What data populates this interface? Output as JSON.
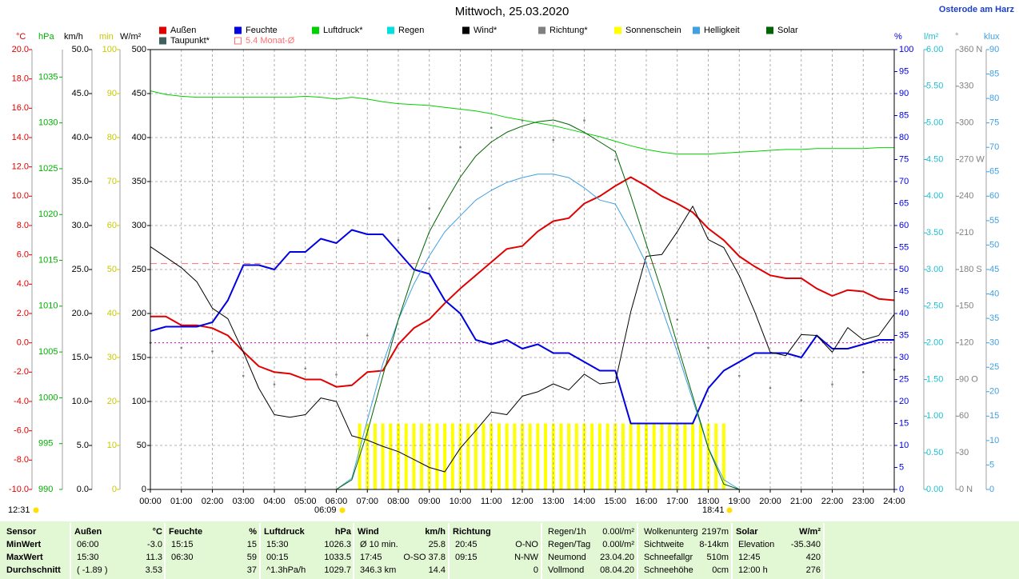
{
  "chart_data": {
    "type": "line",
    "title": "Mittwoch, 25.03.2020",
    "location": "Osterode am Harz",
    "grid": true,
    "grid_axis": 4,
    "xlim": [
      0,
      24
    ],
    "xticks": [
      {
        "value": 0,
        "label": "00:00"
      },
      {
        "value": 1,
        "label": "01:00"
      },
      {
        "value": 2,
        "label": "02:00"
      },
      {
        "value": 3,
        "label": "03:00"
      },
      {
        "value": 4,
        "label": "04:00"
      },
      {
        "value": 5,
        "label": "05:00"
      },
      {
        "value": 6,
        "label": "06:00"
      },
      {
        "value": 7,
        "label": "07:00"
      },
      {
        "value": 8,
        "label": "08:00"
      },
      {
        "value": 9,
        "label": "09:00"
      },
      {
        "value": 10,
        "label": "10:00"
      },
      {
        "value": 11,
        "label": "11:00"
      },
      {
        "value": 12,
        "label": "12:00"
      },
      {
        "value": 13,
        "label": "13:00"
      },
      {
        "value": 14,
        "label": "14:00"
      },
      {
        "value": 15,
        "label": "15:00"
      },
      {
        "value": 16,
        "label": "16:00"
      },
      {
        "value": 17,
        "label": "17:00"
      },
      {
        "value": 18,
        "label": "18:00"
      },
      {
        "value": 19,
        "label": "19:00"
      },
      {
        "value": 20,
        "label": "20:00"
      },
      {
        "value": 21,
        "label": "21:00"
      },
      {
        "value": 22,
        "label": "22:00"
      },
      {
        "value": 23,
        "label": "23:00"
      },
      {
        "value": 24,
        "label": "24:00"
      }
    ],
    "axes": [
      {
        "unit": "°C",
        "color": "#e00000",
        "ylim": [
          -10,
          20
        ],
        "yticks": [
          {
            "value": -10,
            "label": "-10.0"
          },
          {
            "value": -8,
            "label": "-8.0"
          },
          {
            "value": -6,
            "label": "-6.0"
          },
          {
            "value": -4,
            "label": "-4.0"
          },
          {
            "value": -2,
            "label": "-2.0"
          },
          {
            "value": 0,
            "label": "0.0"
          },
          {
            "value": 2,
            "label": "2.0"
          },
          {
            "value": 4,
            "label": "4.0"
          },
          {
            "value": 6,
            "label": "6.0"
          },
          {
            "value": 8,
            "label": "8.0"
          },
          {
            "value": 10,
            "label": "10.0"
          },
          {
            "value": 12,
            "label": "12.0"
          },
          {
            "value": 14,
            "label": "14.0"
          },
          {
            "value": 16,
            "label": "16.0"
          },
          {
            "value": 18,
            "label": "18.0"
          },
          {
            "value": 20,
            "label": "20.0"
          }
        ]
      },
      {
        "unit": "hPa",
        "color": "#00b000",
        "ylim": [
          990,
          1038
        ],
        "yticks": [
          990,
          995,
          1000,
          1005,
          1010,
          1015,
          1020,
          1025,
          1030,
          1035
        ]
      },
      {
        "unit": "km/h",
        "color": "#000000",
        "ylim": [
          0,
          50
        ],
        "yticks": [
          {
            "value": 0,
            "label": "0.0"
          },
          {
            "value": 5,
            "label": "5.0"
          },
          {
            "value": 10,
            "label": "10.0"
          },
          {
            "value": 15,
            "label": "15.0"
          },
          {
            "value": 20,
            "label": "20.0"
          },
          {
            "value": 25,
            "label": "25.0"
          },
          {
            "value": 30,
            "label": "30.0"
          },
          {
            "value": 35,
            "label": "35.0"
          },
          {
            "value": 40,
            "label": "40.0"
          },
          {
            "value": 45,
            "label": "45.0"
          },
          {
            "value": 50,
            "label": "50.0"
          }
        ]
      },
      {
        "unit": "min",
        "color": "#c8c800",
        "ylim": [
          0,
          100
        ],
        "yticks": [
          0,
          10,
          20,
          30,
          40,
          50,
          60,
          70,
          80,
          90,
          100
        ]
      },
      {
        "unit": "W/m²",
        "color": "#000000",
        "ylim": [
          0,
          500
        ],
        "yticks": [
          0,
          50,
          100,
          150,
          200,
          250,
          300,
          350,
          400,
          450,
          500
        ]
      },
      {
        "unit": "%",
        "color": "#0000e0",
        "ylim": [
          0,
          100
        ],
        "yticks": [
          0,
          5,
          10,
          15,
          20,
          25,
          30,
          35,
          40,
          45,
          50,
          55,
          60,
          65,
          70,
          75,
          80,
          85,
          90,
          95,
          100
        ]
      },
      {
        "unit": "l/m²",
        "color": "#20c0d0",
        "ylim": [
          0,
          6
        ],
        "yticks": [
          {
            "value": 0,
            "label": "0.00"
          },
          {
            "value": 0.5,
            "label": "0.50"
          },
          {
            "value": 1,
            "label": "1.00"
          },
          {
            "value": 1.5,
            "label": "1.50"
          },
          {
            "value": 2,
            "label": "2.00"
          },
          {
            "value": 2.5,
            "label": "2.50"
          },
          {
            "value": 3,
            "label": "3.00"
          },
          {
            "value": 3.5,
            "label": "3.50"
          },
          {
            "value": 4,
            "label": "4.00"
          },
          {
            "value": 4.5,
            "label": "4.50"
          },
          {
            "value": 5,
            "label": "5.00"
          },
          {
            "value": 5.5,
            "label": "5.50"
          },
          {
            "value": 6,
            "label": "6.00"
          }
        ]
      },
      {
        "unit": "°",
        "color": "#808080",
        "ylim": [
          0,
          360
        ],
        "yticks": [
          {
            "value": 0,
            "label": "0 N"
          },
          30,
          60,
          {
            "value": 90,
            "label": "90 O"
          },
          120,
          150,
          {
            "value": 180,
            "label": "180 S"
          },
          210,
          240,
          {
            "value": 270,
            "label": "270 W"
          },
          300,
          330,
          {
            "value": 360,
            "label": "360 N"
          }
        ]
      },
      {
        "unit": "klux",
        "color": "#40a0e0",
        "ylim": [
          0,
          90
        ],
        "yticks": [
          0,
          5,
          10,
          15,
          20,
          25,
          30,
          35,
          40,
          45,
          50,
          55,
          60,
          65,
          70,
          75,
          80,
          85,
          90
        ]
      }
    ],
    "x": [
      0,
      0.5,
      1,
      1.5,
      2,
      2.5,
      3,
      3.5,
      4,
      4.5,
      5,
      5.5,
      6,
      6.5,
      7,
      7.5,
      8,
      8.5,
      9,
      9.5,
      10,
      10.5,
      11,
      11.5,
      12,
      12.5,
      13,
      13.5,
      14,
      14.5,
      15,
      15.5,
      16,
      16.5,
      17,
      17.5,
      18,
      18.5,
      19,
      19.5,
      20,
      20.5,
      21,
      21.5,
      22,
      22.5,
      23,
      23.5,
      24
    ],
    "series": [
      {
        "name": "Außen",
        "color": "#e00000",
        "axis": 0,
        "style": "line",
        "width": 2,
        "values": [
          1.8,
          1.8,
          1.2,
          1.2,
          1.0,
          0.5,
          -0.6,
          -1.6,
          -2.0,
          -2.1,
          -2.5,
          -2.5,
          -3.0,
          -2.9,
          -2.0,
          -1.9,
          -0.1,
          1.0,
          1.6,
          2.7,
          3.7,
          4.6,
          5.5,
          6.4,
          6.6,
          7.6,
          8.3,
          8.5,
          9.5,
          10.0,
          10.7,
          11.3,
          10.7,
          10.0,
          9.5,
          8.9,
          7.8,
          7.0,
          5.9,
          5.2,
          4.6,
          4.4,
          4.4,
          3.7,
          3.2,
          3.6,
          3.5,
          3.0,
          2.9
        ]
      },
      {
        "name": "Feuchte",
        "color": "#0000e0",
        "axis": 5,
        "style": "line",
        "width": 2,
        "values": [
          36,
          37,
          37,
          37,
          38,
          43,
          51,
          51,
          50,
          54,
          54,
          57,
          56,
          59,
          58,
          58,
          54,
          50,
          49,
          43,
          40,
          34,
          33,
          34,
          32,
          33,
          31,
          31,
          29,
          27,
          27,
          15,
          15,
          15,
          15,
          15,
          23,
          27,
          29,
          31,
          31,
          31,
          30,
          35,
          32,
          32,
          33,
          34,
          34
        ]
      },
      {
        "name": "Luftdruck*",
        "color": "#00d000",
        "axis": 1,
        "style": "line",
        "width": 1,
        "values": [
          1033.5,
          1033.1,
          1032.9,
          1032.8,
          1032.8,
          1032.8,
          1032.8,
          1032.8,
          1032.8,
          1032.8,
          1032.9,
          1032.8,
          1032.6,
          1032.8,
          1032.6,
          1032.3,
          1032.1,
          1032.0,
          1031.9,
          1031.7,
          1031.5,
          1031.3,
          1031.0,
          1030.6,
          1030.3,
          1030.0,
          1029.7,
          1029.3,
          1028.9,
          1028.5,
          1028.0,
          1027.5,
          1027.1,
          1026.8,
          1026.6,
          1026.6,
          1026.6,
          1026.7,
          1026.8,
          1026.9,
          1027.0,
          1027.1,
          1027.1,
          1027.2,
          1027.2,
          1027.2,
          1027.2,
          1027.3,
          1027.3
        ]
      },
      {
        "name": "Regen",
        "color": "#00e0e0"
      },
      {
        "name": "Wind*",
        "color": "#000000",
        "axis": 2,
        "style": "line",
        "width": 1,
        "values": [
          27.6,
          26.4,
          25.2,
          23.6,
          20.6,
          19.4,
          15.6,
          11.5,
          8.5,
          8.2,
          8.5,
          10.4,
          10.0,
          6.1,
          5.6,
          4.9,
          4.3,
          3.4,
          2.5,
          2.0,
          4.7,
          6.7,
          8.8,
          8.5,
          10.6,
          11.1,
          12.0,
          11.3,
          13.1,
          12.0,
          12.2,
          20.2,
          26.5,
          26.7,
          29.3,
          32.2,
          28.4,
          27.5,
          24.3,
          20.2,
          15.6,
          15.2,
          17.6,
          17.5,
          15.6,
          18.4,
          17.0,
          17.5,
          19.9
        ]
      },
      {
        "name": "Richtung*",
        "color": "#808080",
        "axis": 7,
        "style": "dots",
        "x": [
          0,
          1,
          2,
          3,
          4,
          5,
          6,
          7,
          8,
          9,
          10,
          11,
          12,
          13,
          14,
          15,
          16,
          17,
          18,
          19,
          20,
          21,
          22,
          23,
          24
        ],
        "values": [
          120,
          116,
          113,
          93,
          86,
          99,
          94,
          126,
          204,
          230,
          280,
          296,
          302,
          286,
          302,
          270,
          185,
          139,
          116,
          93,
          83,
          73,
          86,
          96,
          98
        ]
      },
      {
        "name": "Sonnenschein",
        "color": "#ffff00",
        "axis": 3,
        "style": "bars",
        "x": [
          6.75,
          7,
          7.25,
          7.5,
          7.75,
          8,
          8.25,
          8.5,
          8.75,
          9,
          9.25,
          9.5,
          9.75,
          10,
          10.25,
          10.5,
          10.75,
          11,
          11.25,
          11.5,
          11.75,
          12,
          12.25,
          12.5,
          12.75,
          13,
          13.25,
          13.5,
          13.75,
          14,
          14.25,
          14.5,
          14.75,
          15,
          15.25,
          15.5,
          15.75,
          16,
          16.25,
          16.5,
          16.75,
          17,
          17.25,
          17.5,
          17.75,
          18,
          18.25,
          18.5
        ],
        "values": [
          15,
          15,
          15,
          15,
          15,
          15,
          15,
          15,
          15,
          15,
          15,
          15,
          15,
          15,
          15,
          15,
          15,
          15,
          15,
          15,
          15,
          15,
          15,
          15,
          15,
          15,
          15,
          15,
          15,
          15,
          15,
          15,
          15,
          15,
          15,
          15,
          15,
          15,
          15,
          15,
          15,
          15,
          15,
          15,
          15,
          15,
          15,
          15
        ]
      },
      {
        "name": "Helligkeit",
        "color": "#40a0e0",
        "axis": 8,
        "style": "line",
        "width": 1,
        "values": [
          0,
          0,
          0,
          0,
          0,
          0,
          0,
          0,
          0,
          0,
          0,
          0,
          0,
          2.3,
          14.2,
          25.7,
          34.7,
          42.0,
          47.8,
          52.7,
          56.0,
          59.2,
          61.2,
          62.8,
          63.8,
          64.5,
          64.5,
          63.8,
          61.7,
          59.2,
          58.4,
          52.7,
          46.2,
          37.1,
          28.1,
          18.3,
          8.5,
          2.0,
          0,
          0,
          0,
          0,
          0,
          0,
          0,
          0,
          0,
          0,
          0
        ]
      },
      {
        "name": "Solar",
        "color": "#006400",
        "axis": 4,
        "style": "line",
        "width": 1,
        "values": [
          0,
          0,
          0,
          0,
          0,
          0,
          0,
          0,
          0,
          0,
          0,
          0,
          0,
          11,
          65,
          129,
          193,
          247,
          293,
          325,
          355,
          379,
          395,
          406,
          413,
          418,
          420,
          415,
          406,
          395,
          384,
          334,
          279,
          225,
          165,
          106,
          47,
          6,
          0,
          0,
          0,
          0,
          0,
          0,
          0,
          0,
          0,
          0,
          0
        ]
      },
      {
        "name": "Taupunkt*",
        "color": "#406060"
      }
    ],
    "reference_lines": [
      {
        "name": "5.4 Monat-Ø",
        "value": 5.4,
        "axis": 0,
        "color": "#ff7070",
        "style": "dashed"
      },
      {
        "value": 0,
        "axis": 0,
        "color": "#c000c0",
        "style": "dotted"
      }
    ],
    "sun": {
      "time": "12:31",
      "sunrise": "06:09",
      "sunset": "18:41"
    },
    "stats": {
      "row_labels_title": "Sensor",
      "row_labels": [
        "MinWert",
        "MaxWert",
        "Durchschnitt"
      ],
      "blocks": [
        {
          "title": "Außen",
          "unit": "°C",
          "rows": [
            [
              "06:00",
              "-3.0"
            ],
            [
              "15:30",
              "11.3"
            ],
            [
              "( -1.89 )",
              "3.53"
            ]
          ]
        },
        {
          "title": "Feuchte",
          "unit": "%",
          "rows": [
            [
              "15:15",
              "15"
            ],
            [
              "06:30",
              "59"
            ],
            [
              "37"
            ]
          ]
        },
        {
          "title": "Luftdruck",
          "unit": "hPa",
          "rows": [
            [
              "15:30",
              "1026.3"
            ],
            [
              "00:15",
              "1033.5"
            ],
            [
              "^1.3hPa/h",
              "1029.7"
            ]
          ]
        },
        {
          "title": "Wind",
          "unit": "km/h",
          "rows": [
            [
              "Ø 10 min.",
              "25.8"
            ],
            [
              "17:45",
              "O-SO 37.8"
            ],
            [
              "346.3 km",
              "14.4"
            ]
          ]
        },
        {
          "title": "Richtung",
          "rows": [
            [
              "20:45",
              "O-NO"
            ],
            [
              "09:15",
              "N-NW"
            ],
            [
              "0"
            ]
          ]
        },
        {
          "rows": [
            [
              "Regen/1h",
              "0.00l/m²"
            ],
            [
              "Regen/Tag",
              "0.00l/m²"
            ],
            [
              "Neumond",
              "23.04.20"
            ],
            [
              "Vollmond",
              "08.04.20"
            ]
          ]
        },
        {
          "rows": [
            [
              "Wolkenunterg",
              "2197m"
            ],
            [
              "Sichtweite",
              "8-14km"
            ],
            [
              "Schneefallgr",
              "510m"
            ],
            [
              "Schneehöhe",
              "0cm"
            ]
          ]
        },
        {
          "title": "Solar",
          "unit": "W/m²",
          "rows": [
            [
              "Elevation",
              "-35.340"
            ],
            [
              "12:45",
              "420"
            ],
            [
              "12:00 h",
              "276"
            ]
          ]
        }
      ]
    }
  }
}
